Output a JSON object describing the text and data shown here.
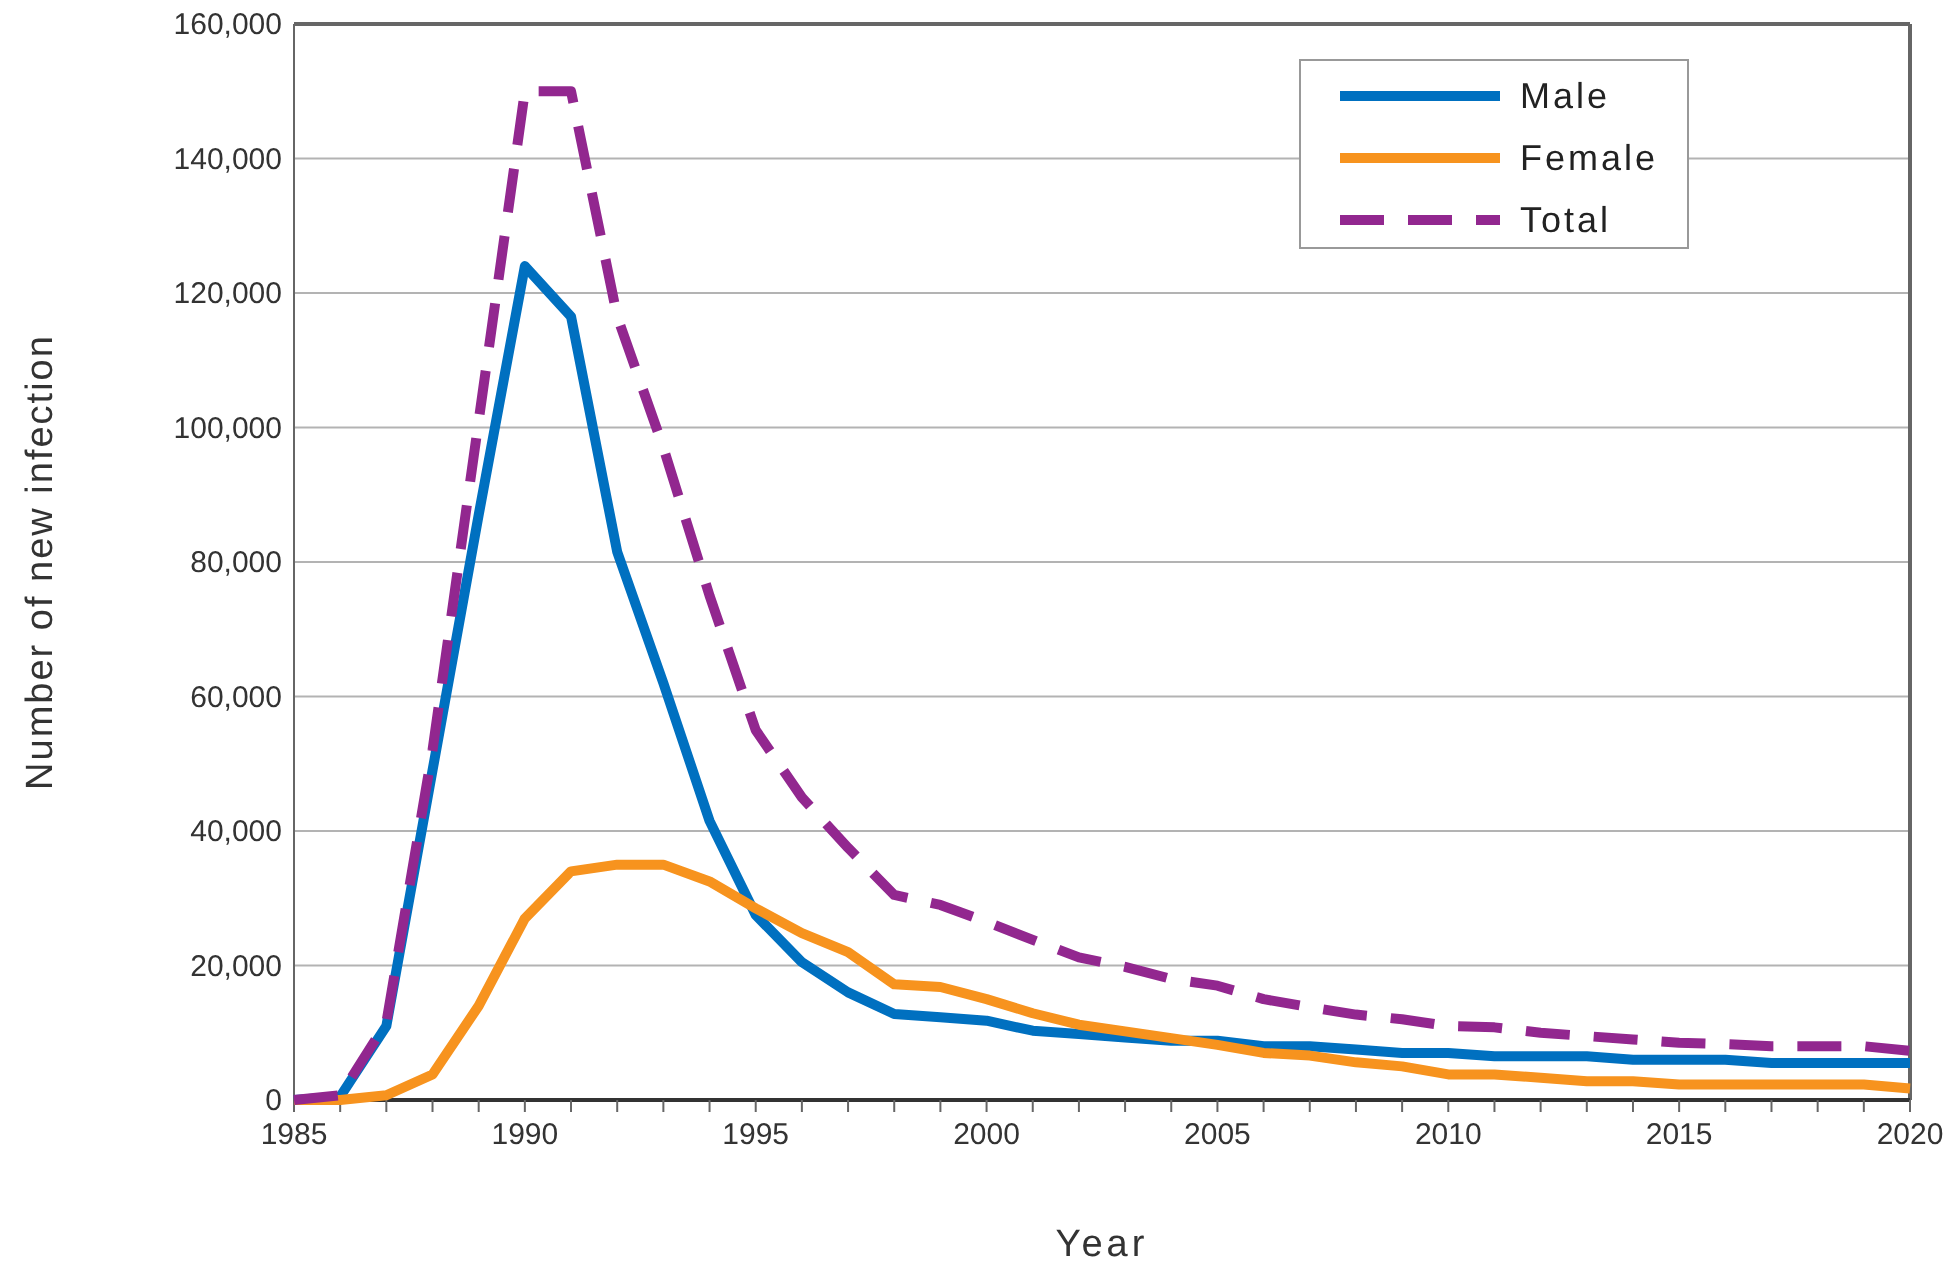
{
  "chart_data": {
    "type": "line",
    "xlabel": "Year",
    "ylabel": "Number of new infection",
    "x": [
      1985,
      1986,
      1987,
      1988,
      1989,
      1990,
      1991,
      1992,
      1993,
      1994,
      1995,
      1996,
      1997,
      1998,
      1999,
      2000,
      2001,
      2002,
      2003,
      2004,
      2005,
      2006,
      2007,
      2008,
      2009,
      2010,
      2011,
      2012,
      2013,
      2014,
      2015,
      2016,
      2017,
      2018,
      2019,
      2020
    ],
    "series": [
      {
        "name": "Male",
        "color": "#0070c0",
        "line_style": "solid",
        "values": [
          0,
          500,
          11000,
          49000,
          87000,
          124000,
          116500,
          81500,
          62000,
          41500,
          27500,
          20500,
          16000,
          12800,
          12300,
          11800,
          10300,
          9800,
          9300,
          8800,
          8800,
          8000,
          8000,
          7500,
          7000,
          7000,
          6500,
          6500,
          6500,
          6000,
          6000,
          6000,
          5500,
          5500,
          5500,
          5500
        ]
      },
      {
        "name": "Female",
        "color": "#f7931e",
        "line_style": "solid",
        "values": [
          0,
          0,
          700,
          3800,
          14000,
          27000,
          34000,
          35000,
          35000,
          32500,
          28500,
          24800,
          22000,
          17200,
          16800,
          15000,
          12900,
          11200,
          10200,
          9200,
          8200,
          7000,
          6600,
          5600,
          5000,
          3800,
          3800,
          3300,
          2800,
          2800,
          2300,
          2300,
          2300,
          2300,
          2300,
          1700
        ]
      },
      {
        "name": "Total",
        "color": "#92278f",
        "line_style": "dashed",
        "values": [
          0,
          700,
          11500,
          52000,
          101000,
          150000,
          150000,
          116500,
          97000,
          75000,
          55000,
          45000,
          37500,
          30500,
          29000,
          26500,
          23800,
          21200,
          19800,
          18000,
          17000,
          15000,
          13800,
          12700,
          12000,
          11000,
          10800,
          10000,
          9500,
          9000,
          8500,
          8300,
          8000,
          8000,
          8000,
          7300
        ]
      }
    ],
    "xlim": [
      1985,
      2020
    ],
    "xticks": [
      1985,
      {
        "value": 1986,
        "label": null
      },
      {
        "value": 1987,
        "label": null
      },
      {
        "value": 1988,
        "label": null
      },
      {
        "value": 1989,
        "label": null
      },
      1990,
      {
        "value": 1991,
        "label": null
      },
      {
        "value": 1992,
        "label": null
      },
      {
        "value": 1993,
        "label": null
      },
      {
        "value": 1994,
        "label": null
      },
      1995,
      {
        "value": 1996,
        "label": null
      },
      {
        "value": 1997,
        "label": null
      },
      {
        "value": 1998,
        "label": null
      },
      {
        "value": 1999,
        "label": null
      },
      2000,
      {
        "value": 2001,
        "label": null
      },
      {
        "value": 2002,
        "label": null
      },
      {
        "value": 2003,
        "label": null
      },
      {
        "value": 2004,
        "label": null
      },
      2005,
      {
        "value": 2006,
        "label": null
      },
      {
        "value": 2007,
        "label": null
      },
      {
        "value": 2008,
        "label": null
      },
      {
        "value": 2009,
        "label": null
      },
      2010,
      {
        "value": 2011,
        "label": null
      },
      {
        "value": 2012,
        "label": null
      },
      {
        "value": 2013,
        "label": null
      },
      {
        "value": 2014,
        "label": null
      },
      2015,
      {
        "value": 2016,
        "label": null
      },
      {
        "value": 2017,
        "label": null
      },
      {
        "value": 2018,
        "label": null
      },
      {
        "value": 2019,
        "label": null
      },
      2020
    ],
    "ylim": [
      0,
      160000
    ],
    "yticks": [
      {
        "value": 0,
        "label": "0"
      },
      {
        "value": 20000,
        "label": "20,000"
      },
      {
        "value": 40000,
        "label": "40,000"
      },
      {
        "value": 60000,
        "label": "60,000"
      },
      {
        "value": 80000,
        "label": "80,000"
      },
      {
        "value": 100000,
        "label": "100,000"
      },
      {
        "value": 120000,
        "label": "120,000"
      },
      {
        "value": 140000,
        "label": "140,000"
      },
      {
        "value": 160000,
        "label": "160,000"
      }
    ],
    "grid": "y",
    "legend": "top right",
    "marker": "none"
  }
}
